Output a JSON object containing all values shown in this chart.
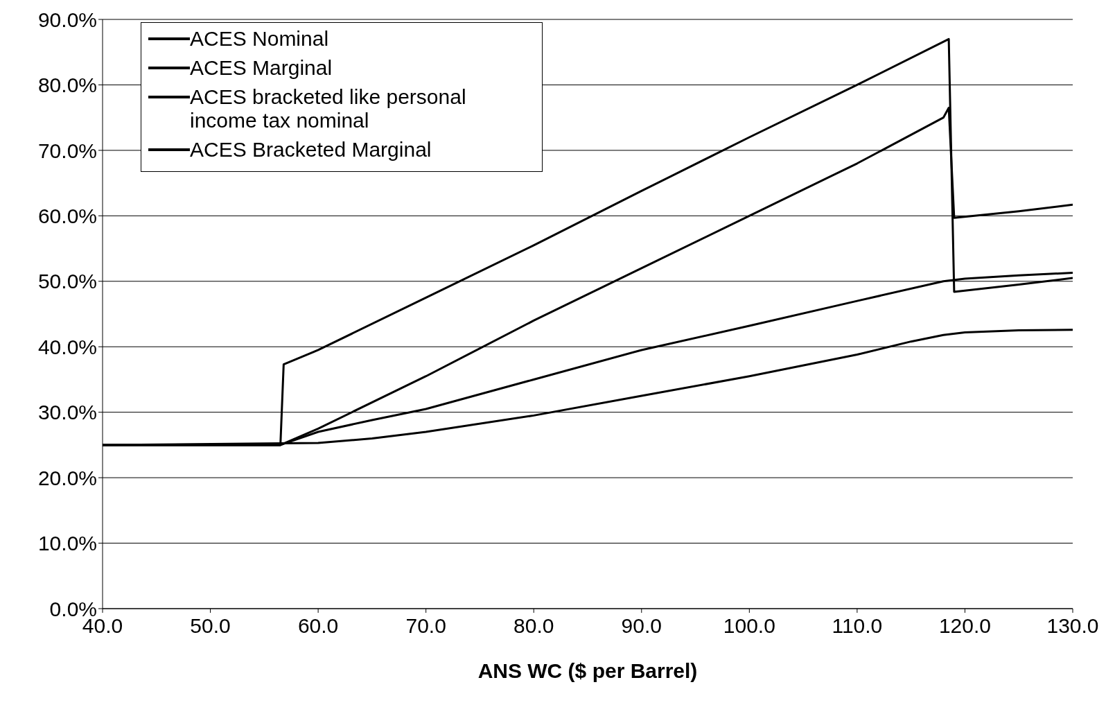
{
  "chart_data": {
    "type": "line",
    "xlabel": "ANS WC ($ per Barrel)",
    "xlim": [
      40,
      130
    ],
    "xticks": [
      {
        "value": 40,
        "label": "40.0"
      },
      {
        "value": 50,
        "label": "50.0"
      },
      {
        "value": 60,
        "label": "60.0"
      },
      {
        "value": 70,
        "label": "70.0"
      },
      {
        "value": 80,
        "label": "80.0"
      },
      {
        "value": 90,
        "label": "90.0"
      },
      {
        "value": 100,
        "label": "100.0"
      },
      {
        "value": 110,
        "label": "110.0"
      },
      {
        "value": 120,
        "label": "120.0"
      },
      {
        "value": 130,
        "label": "130.0"
      }
    ],
    "ylim": [
      0,
      90
    ],
    "yticks": [
      {
        "value": 0,
        "label": "0.0%"
      },
      {
        "value": 10,
        "label": "10.0%"
      },
      {
        "value": 20,
        "label": "20.0%"
      },
      {
        "value": 30,
        "label": "30.0%"
      },
      {
        "value": 40,
        "label": "40.0%"
      },
      {
        "value": 50,
        "label": "50.0%"
      },
      {
        "value": 60,
        "label": "60.0%"
      },
      {
        "value": 70,
        "label": "70.0%"
      },
      {
        "value": 80,
        "label": "80.0%"
      },
      {
        "value": 90,
        "label": "90.0%"
      }
    ],
    "grid": "y",
    "legend": "top left",
    "marker": "none",
    "line_style": "solid",
    "series": [
      {
        "name": "ACES Nominal",
        "color": "#000000",
        "x": [
          40,
          56.5,
          60,
          65,
          70,
          80,
          90,
          100,
          110,
          118,
          120,
          125,
          130
        ],
        "values": [
          25,
          25,
          27,
          28.8,
          30.5,
          35,
          39.5,
          43.2,
          47,
          50,
          50.4,
          50.9,
          51.3
        ]
      },
      {
        "name": "ACES Marginal",
        "color": "#000000",
        "x": [
          40,
          56.5,
          56.8,
          60,
          70,
          80,
          90,
          100,
          110,
          118.5,
          119,
          125,
          130
        ],
        "values": [
          25,
          25,
          37.3,
          39.5,
          47.5,
          55.5,
          63.8,
          72,
          80,
          87,
          48.4,
          49.5,
          50.5
        ]
      },
      {
        "name": "ACES bracketed like personal income tax nominal",
        "color": "#000000",
        "x": [
          40,
          60,
          65,
          70,
          80,
          90,
          100,
          110,
          115,
          118,
          120,
          125,
          130
        ],
        "values": [
          25,
          25.3,
          26,
          27,
          29.5,
          32.5,
          35.5,
          38.8,
          40.8,
          41.8,
          42.2,
          42.5,
          42.6
        ]
      },
      {
        "name": "ACES Bracketed Marginal",
        "color": "#000000",
        "x": [
          40,
          56.5,
          60,
          70,
          80,
          90,
          100,
          110,
          118,
          118.5,
          119,
          125,
          130
        ],
        "values": [
          25,
          25,
          27.5,
          35.5,
          44,
          52,
          60,
          68,
          75,
          76.5,
          59.7,
          60.7,
          61.7
        ]
      }
    ]
  }
}
